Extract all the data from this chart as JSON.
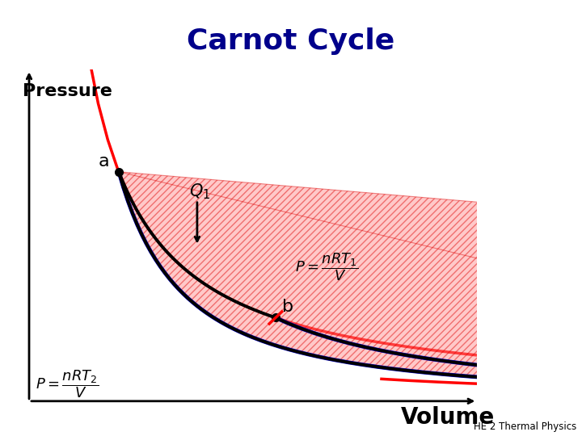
{
  "title": "Carnot Cycle",
  "title_bg_color": "#87CEEB",
  "title_fontsize": 26,
  "title_color": "#00008B",
  "xlabel": "Volume",
  "ylabel": "Pressure",
  "xlabel_fontsize": 20,
  "ylabel_fontsize": 16,
  "bg_color": "white",
  "gamma": 1.4,
  "Va": 2.0,
  "Pa": 9.0,
  "Vb": 5.5,
  "Vd_guess": 3.2,
  "isotherm_color": "#FF0000",
  "adiabat_color": "#0000CC",
  "cycle_color": "#000000",
  "fill_color": "#FF8888",
  "fill_alpha": 0.45,
  "hatch": "////",
  "xlim": [
    0.0,
    10.0
  ],
  "ylim": [
    0.0,
    13.0
  ],
  "subtitle": "HE 2 Thermal Physics"
}
